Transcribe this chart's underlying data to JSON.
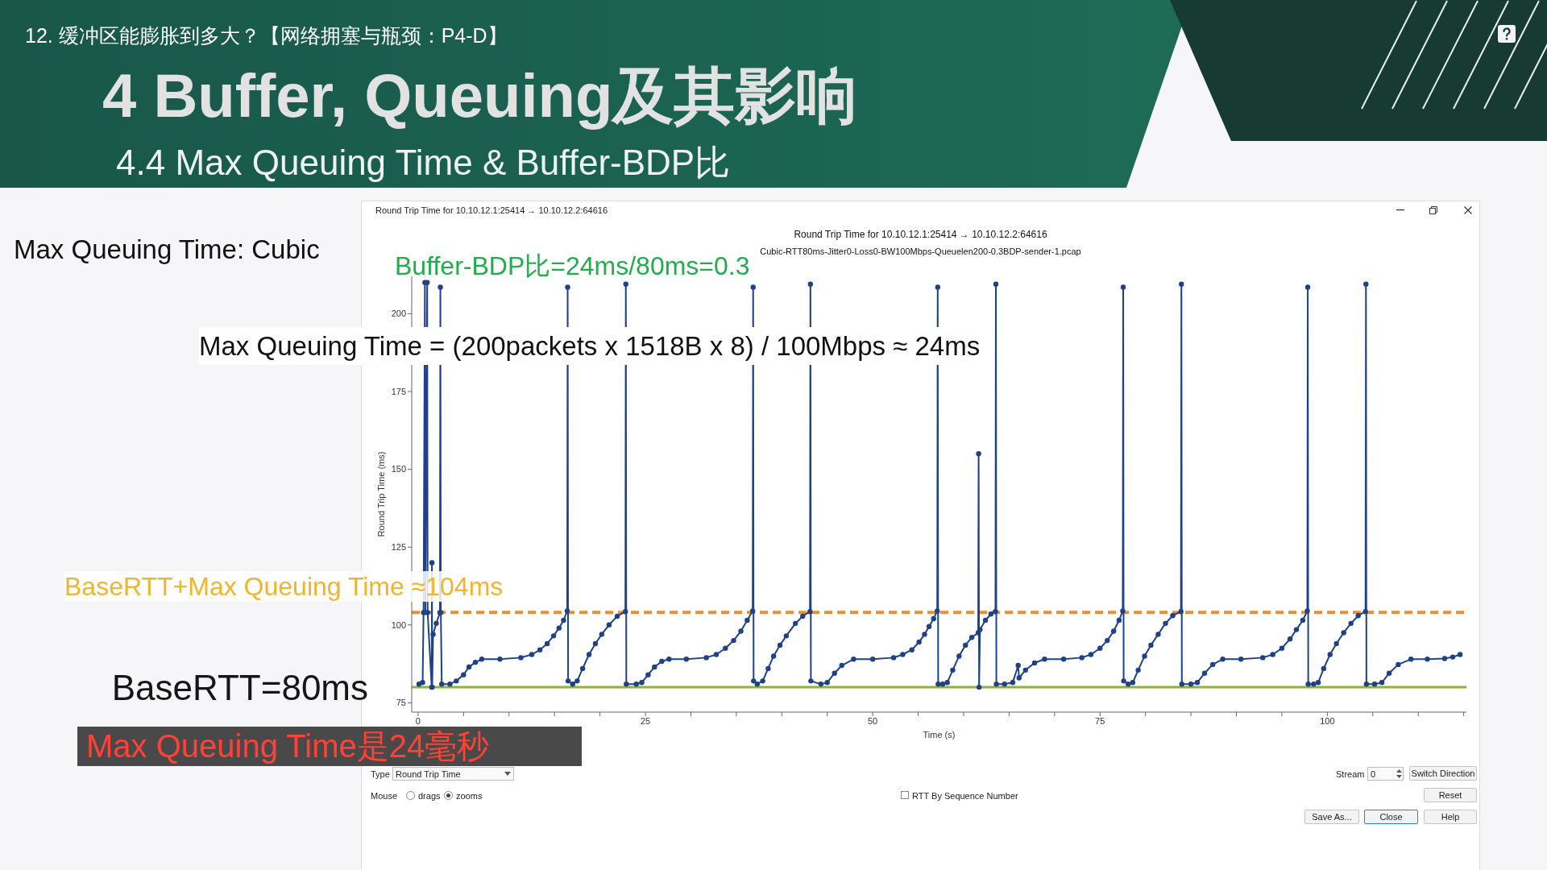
{
  "chart_data": {
    "type": "line",
    "title": "Round Trip Time for 10.10.12.1:25414 → 10.10.12.2:64616",
    "subtitle": "Cubic-RTT80ms-Jitter0-Loss0-BW100Mbps-Queuelen200-0.3BDP-sender-1.pcap",
    "xlabel": "Time (s)",
    "ylabel": "Round Trip Time (ms)",
    "x": [
      0.1,
      0.5,
      0.6,
      0.75,
      0.8,
      1.0,
      1.05,
      1.5,
      1.52,
      1.55,
      1.65,
      2.0,
      2.4,
      2.45,
      2.5,
      2.6,
      3.5,
      4.2,
      5.0,
      5.6,
      6.3,
      7.0,
      9.0,
      11.3,
      12.5,
      13.4,
      14.2,
      14.9,
      15.5,
      16.0,
      16.4,
      16.45,
      16.5,
      17.0,
      17.5,
      18.1,
      18.8,
      19.5,
      20.2,
      21.0,
      21.9,
      22.8,
      22.85,
      22.9,
      24.0,
      24.6,
      25.3,
      26.0,
      26.8,
      27.6,
      29.5,
      31.7,
      32.8,
      33.8,
      34.7,
      35.5,
      36.2,
      36.8,
      36.85,
      36.9,
      37.3,
      37.9,
      38.5,
      39.1,
      39.8,
      40.5,
      41.5,
      42.3,
      43.1,
      43.15,
      43.2,
      44.3,
      45.0,
      45.8,
      46.6,
      47.9,
      50.0,
      52.3,
      53.3,
      54.3,
      55.1,
      55.7,
      56.2,
      56.7,
      57.1,
      57.15,
      57.2,
      57.7,
      58.2,
      58.8,
      59.5,
      60.2,
      60.9,
      61.6,
      61.65,
      61.7,
      61.8,
      62.4,
      63.0,
      63.5,
      63.55,
      63.6,
      64.5,
      65.4,
      66.0,
      66.1,
      66.8,
      67.8,
      68.9,
      71.0,
      73.0,
      74.0,
      75.0,
      75.8,
      76.5,
      77.1,
      77.5,
      77.55,
      77.6,
      78.1,
      78.6,
      79.2,
      79.9,
      80.6,
      81.4,
      82.2,
      83.0,
      83.9,
      83.95,
      84.0,
      85.0,
      85.7,
      86.5,
      87.4,
      88.5,
      90.5,
      92.9,
      94.0,
      95.0,
      95.9,
      96.6,
      97.3,
      97.8,
      97.85,
      97.9,
      98.5,
      99.0,
      99.6,
      100.3,
      101.0,
      101.8,
      102.6,
      103.4,
      104.2,
      104.25,
      104.3,
      105.2,
      106.0,
      106.8,
      107.8,
      109.2,
      111.0,
      112.9,
      113.8,
      114.6
    ],
    "values": [
      81,
      81.5,
      104,
      210,
      104,
      210,
      104,
      80,
      120,
      80,
      97,
      100.5,
      104,
      208.5,
      104,
      81,
      81,
      82,
      84,
      86.5,
      88,
      89,
      89,
      89.5,
      90.5,
      92,
      94,
      96.5,
      99,
      101.5,
      104.5,
      208.5,
      82,
      81,
      82,
      86,
      90.5,
      94,
      97,
      100,
      102.8,
      104.3,
      209.5,
      81,
      81,
      81.5,
      84,
      86.5,
      88.3,
      89,
      89,
      89.5,
      90.5,
      92.5,
      95,
      98,
      101.5,
      104.5,
      208.5,
      82,
      81,
      82,
      86,
      90,
      93.5,
      96.5,
      100.5,
      102.8,
      104.3,
      209.5,
      82,
      81,
      81.5,
      84.5,
      87,
      89,
      89,
      89.5,
      90.5,
      92,
      94.5,
      97,
      99.5,
      102,
      104.5,
      208.5,
      81,
      81,
      81.5,
      85.5,
      90,
      93.5,
      96,
      97.5,
      155,
      80,
      98.5,
      101.5,
      103.5,
      104.3,
      209.5,
      81,
      81,
      81.5,
      87,
      83,
      85.5,
      87.8,
      89,
      89,
      89.5,
      90.5,
      92.5,
      95,
      98,
      101.5,
      104.5,
      208.5,
      82,
      81,
      81.5,
      85.5,
      90,
      93.5,
      97,
      100.5,
      103,
      104.3,
      209.5,
      81,
      81,
      81.5,
      84.5,
      87.3,
      89,
      89,
      89.5,
      90.5,
      92.5,
      95.5,
      98.5,
      101.5,
      104.5,
      208.5,
      81,
      81,
      81.5,
      86,
      90.5,
      94,
      97.5,
      100.5,
      103,
      104.3,
      209.5,
      81,
      81,
      81.5,
      84.5,
      87.3,
      89,
      89,
      89.2,
      89.7,
      90.5
    ],
    "color": "#1f4287",
    "marker": "circle",
    "line_style": "solid",
    "xlim": [
      -0.7,
      115.3
    ],
    "ylim": [
      72,
      212
    ],
    "xticks": [
      0,
      {
        "value": 5,
        "label": null
      },
      {
        "value": 10,
        "label": null
      },
      {
        "value": 15,
        "label": null
      },
      {
        "value": 20,
        "label": null
      },
      25,
      {
        "value": 30,
        "label": null
      },
      {
        "value": 35,
        "label": null
      },
      {
        "value": 40,
        "label": null
      },
      {
        "value": 45,
        "label": null
      },
      50,
      {
        "value": 55,
        "label": null
      },
      {
        "value": 60,
        "label": null
      },
      {
        "value": 65,
        "label": null
      },
      {
        "value": 70,
        "label": null
      },
      75,
      {
        "value": 80,
        "label": null
      },
      {
        "value": 85,
        "label": null
      },
      {
        "value": 90,
        "label": null
      },
      {
        "value": 95,
        "label": null
      },
      100,
      {
        "value": 105,
        "label": null
      },
      {
        "value": 110,
        "label": null
      },
      {
        "value": 115,
        "label": null
      }
    ],
    "yticks": [
      75,
      100,
      125,
      150,
      175,
      200
    ],
    "ref_lines": [
      {
        "axis": "y",
        "value": 104,
        "label": "BaseRTT+Max Queuing Time ≈104ms",
        "color": "#f08c2e",
        "line_style": "dashed"
      },
      {
        "axis": "y",
        "value": 80,
        "label": "BaseRTT=80ms",
        "color": "#8db33a",
        "line_style": "solid"
      }
    ],
    "annotations": [
      "12. 缓冲区能膨胀到多大？【网络拥塞与瓶颈：P4-D】",
      "4 Buffer, Queuing及其影响",
      "4.4 Max Queuing Time & Buffer-BDP比",
      "Max Queuing Time: Cubic",
      "Round Trip Time for 10.10.12.1:25414 → 10.10.12.2:64616",
      "Buffer-BDP比=24ms/80ms=0.3",
      "Max Queuing Time = (200packets x 1518B x 8) / 100Mbps ≈ 24ms",
      "Max Queuing Time是24毫秒",
      "Type",
      "Round Trip Time",
      "Stream",
      "0",
      "Switch Direction",
      "Mouse",
      "drags",
      "zooms",
      "RTT By Sequence Number",
      "Reset",
      "Save As...",
      "Close",
      "Help"
    ]
  }
}
